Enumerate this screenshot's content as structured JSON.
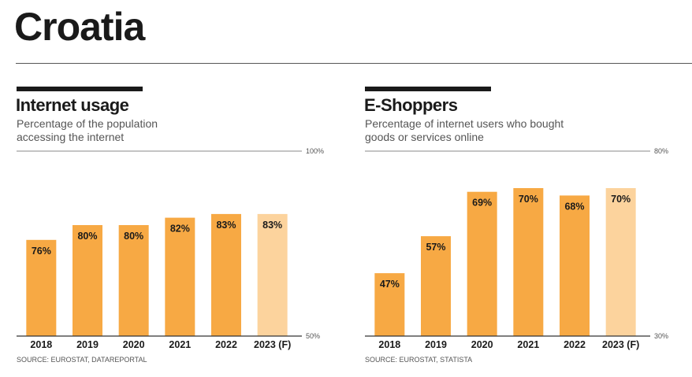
{
  "page": {
    "title": "Croatia"
  },
  "colors": {
    "bar": "#f7a944",
    "forecast": "#fcd39d",
    "text": "#1a1a1a"
  },
  "chart_data": [
    {
      "type": "bar",
      "title": "Internet usage",
      "subtitle_lines": [
        "Percentage of the population",
        "accessing the internet"
      ],
      "categories": [
        "2018",
        "2019",
        "2020",
        "2021",
        "2022",
        "2023 (F)"
      ],
      "values": [
        76,
        80,
        80,
        82,
        83,
        83
      ],
      "value_labels": [
        "76%",
        "80%",
        "80%",
        "82%",
        "83%",
        "83%"
      ],
      "forecast": [
        false,
        false,
        false,
        false,
        false,
        true
      ],
      "ylim": [
        50,
        100
      ],
      "y_tick_labels": {
        "max": "100%",
        "min": "50%"
      },
      "source": "SOURCE: EUROSTAT, DATAREPORTAL"
    },
    {
      "type": "bar",
      "title": "E-Shoppers",
      "subtitle_lines": [
        "Percentage of internet users who bought",
        "goods or services online"
      ],
      "categories": [
        "2018",
        "2019",
        "2020",
        "2021",
        "2022",
        "2023 (F)"
      ],
      "values": [
        47,
        57,
        69,
        70,
        68,
        70
      ],
      "value_labels": [
        "47%",
        "57%",
        "69%",
        "70%",
        "68%",
        "70%"
      ],
      "forecast": [
        false,
        false,
        false,
        false,
        false,
        true
      ],
      "ylim": [
        30,
        80
      ],
      "y_tick_labels": {
        "max": "80%",
        "min": "30%"
      },
      "source": "SOURCE: EUROSTAT, STATISTA"
    }
  ]
}
